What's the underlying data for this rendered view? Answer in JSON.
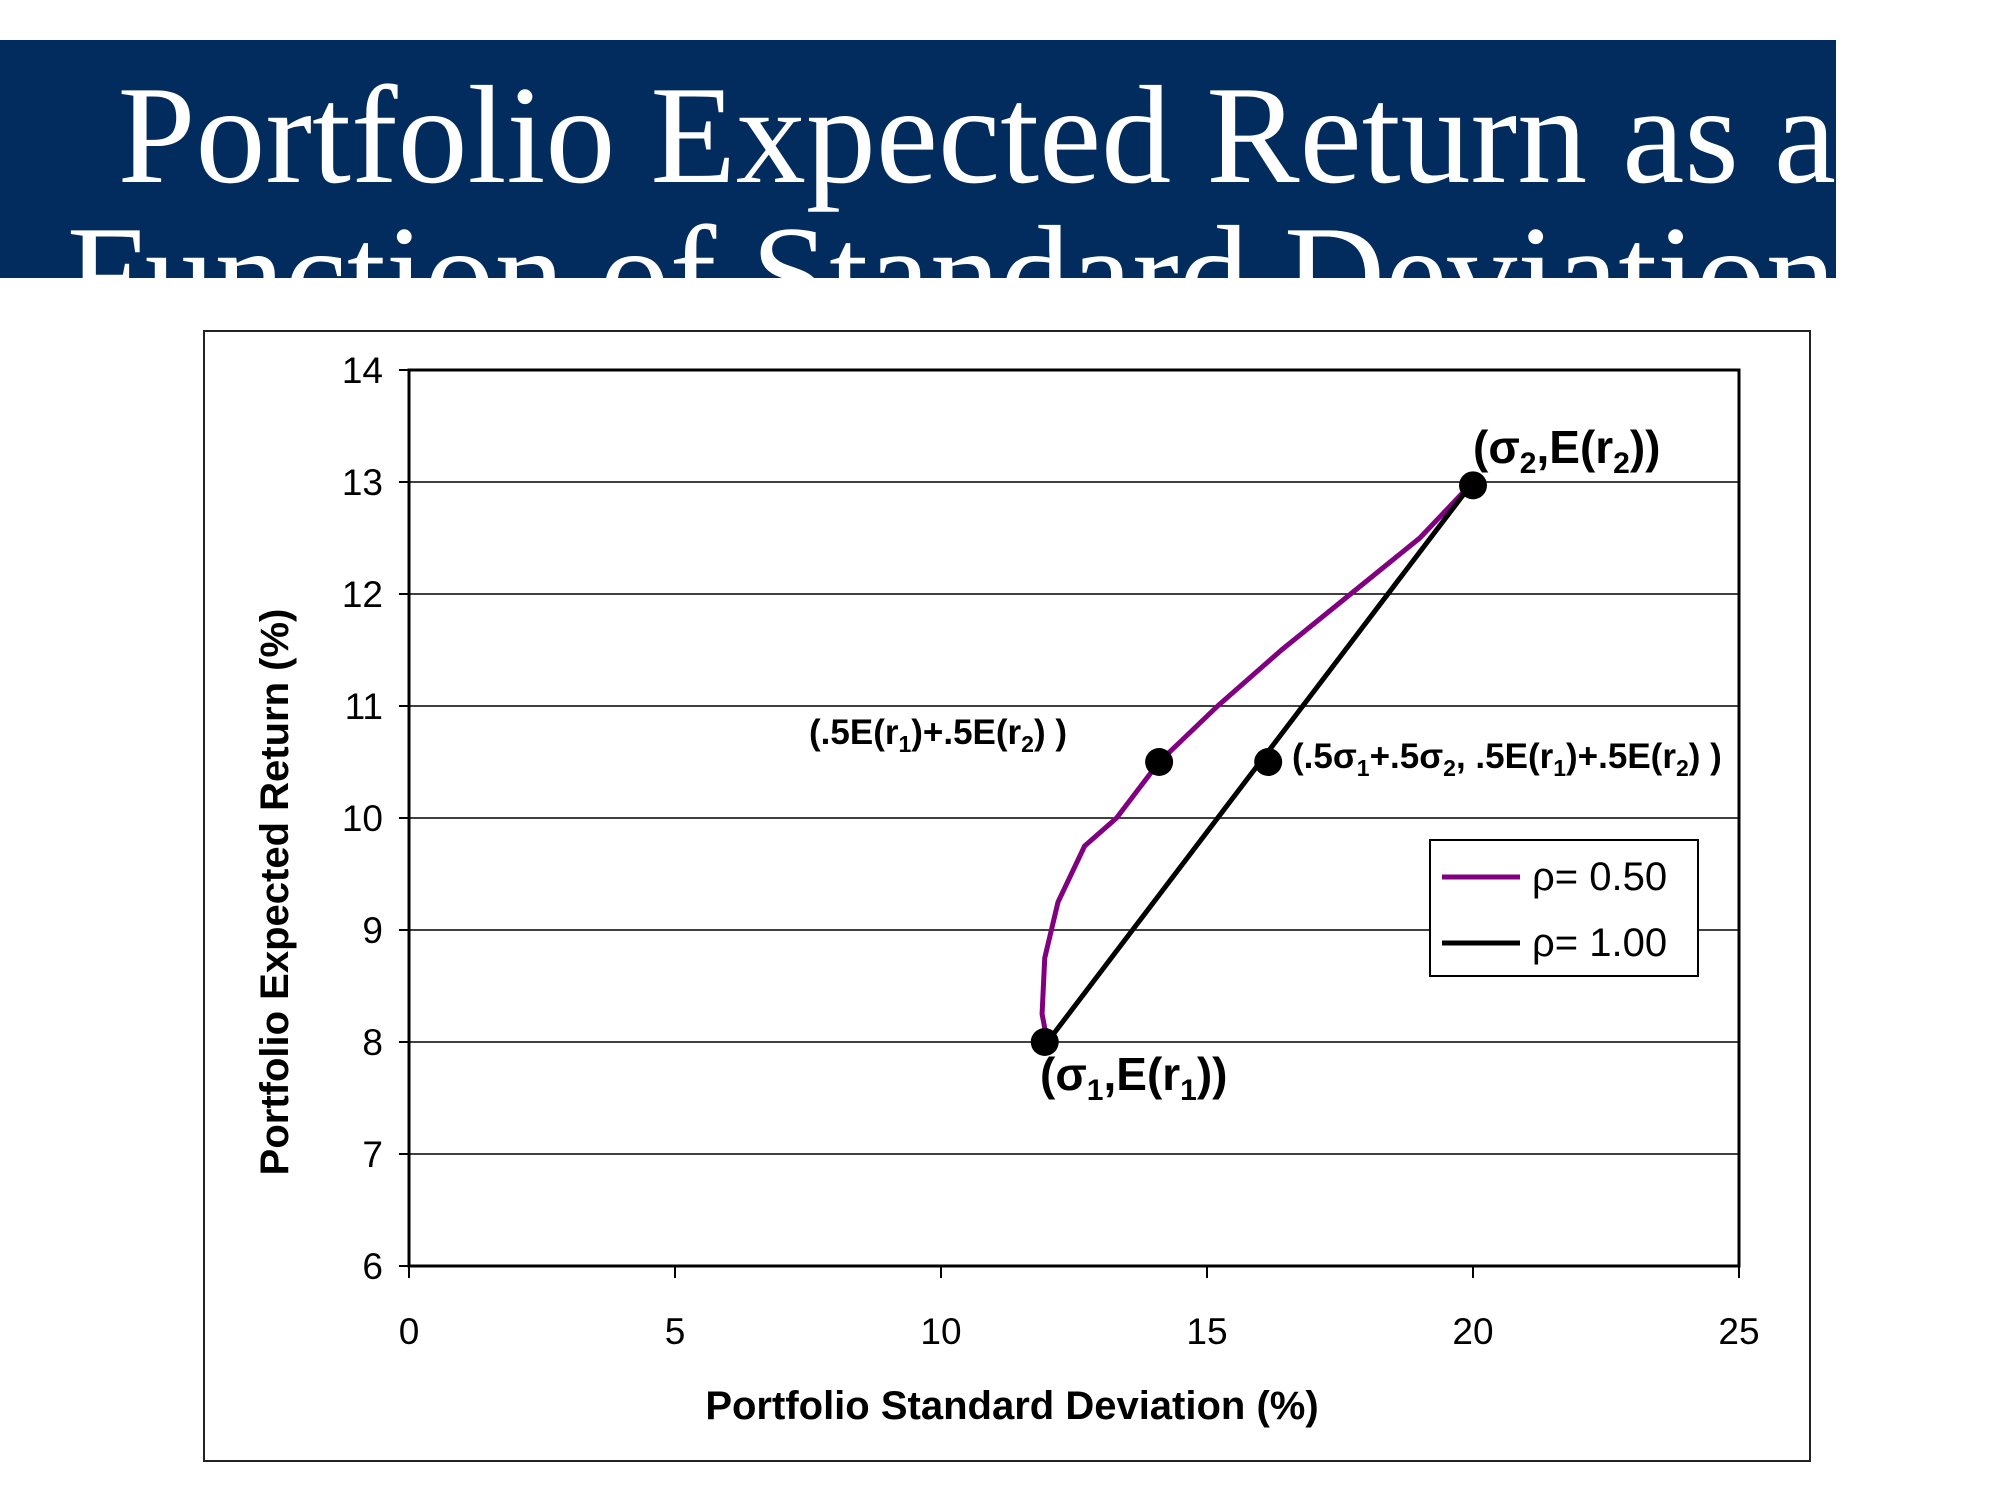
{
  "title": {
    "line1": "Portfolio Expected Return as a",
    "line2": "Function of Standard Deviation"
  },
  "colors": {
    "title_band": "#022b5e",
    "series_050": "#800080",
    "series_100": "#000000"
  },
  "chart_data": {
    "type": "line",
    "xlabel": "Portfolio Standard Deviation (%)",
    "ylabel": "Portfolio Expected Return (%)",
    "xlim": [
      0,
      25
    ],
    "ylim": [
      6,
      14
    ],
    "x_ticks": [
      "0",
      "5",
      "10",
      "15",
      "20",
      "25"
    ],
    "y_ticks": [
      "6",
      "7",
      "8",
      "9",
      "10",
      "11",
      "12",
      "13",
      "14"
    ],
    "grid": "horizontal",
    "legend_position": "right",
    "series": [
      {
        "name": "ρ= 0.50",
        "color": "#800080",
        "points": [
          [
            12.0,
            8.0
          ],
          [
            11.9,
            8.25
          ],
          [
            11.95,
            8.75
          ],
          [
            12.2,
            9.25
          ],
          [
            12.7,
            9.75
          ],
          [
            13.3,
            10.0
          ],
          [
            14.1,
            10.5
          ],
          [
            15.2,
            11.0
          ],
          [
            16.4,
            11.5
          ],
          [
            17.7,
            12.0
          ],
          [
            19.0,
            12.5
          ],
          [
            20.0,
            13.0
          ]
        ]
      },
      {
        "name": "ρ= 1.00",
        "color": "#000000",
        "points": [
          [
            12.0,
            8.0
          ],
          [
            20.0,
            13.0
          ]
        ]
      }
    ],
    "markers": [
      {
        "x": 11.95,
        "y": 8.0
      },
      {
        "x": 14.1,
        "y": 10.5
      },
      {
        "x": 16.15,
        "y": 10.5
      },
      {
        "x": 20.0,
        "y": 12.97
      }
    ],
    "annotations": [
      {
        "id": "sigma1",
        "parts": [
          [
            "(σ",
            ""
          ],
          [
            "1",
            "sub"
          ],
          [
            ",E(r",
            ""
          ],
          [
            "1",
            "sub"
          ],
          [
            "))",
            ""
          ]
        ]
      },
      {
        "id": "sigma2",
        "parts": [
          [
            "(σ",
            ""
          ],
          [
            "2",
            "sub"
          ],
          [
            ",E(r",
            ""
          ],
          [
            "2",
            "sub"
          ],
          [
            "))",
            ""
          ]
        ]
      },
      {
        "id": "half-return",
        "parts": [
          [
            "(.5E(r",
            ""
          ],
          [
            "1",
            "sub"
          ],
          [
            ")+.5E(r",
            ""
          ],
          [
            "2",
            "sub"
          ],
          [
            ") )",
            ""
          ]
        ]
      },
      {
        "id": "half-both",
        "parts": [
          [
            "(.5σ",
            ""
          ],
          [
            "1",
            "sub"
          ],
          [
            "+.5σ",
            ""
          ],
          [
            "2",
            "sub"
          ],
          [
            ", .5E(r",
            ""
          ],
          [
            "1",
            "sub"
          ],
          [
            ")+.5E(r",
            ""
          ],
          [
            "2",
            "sub"
          ],
          [
            ") )",
            ""
          ]
        ]
      }
    ]
  }
}
